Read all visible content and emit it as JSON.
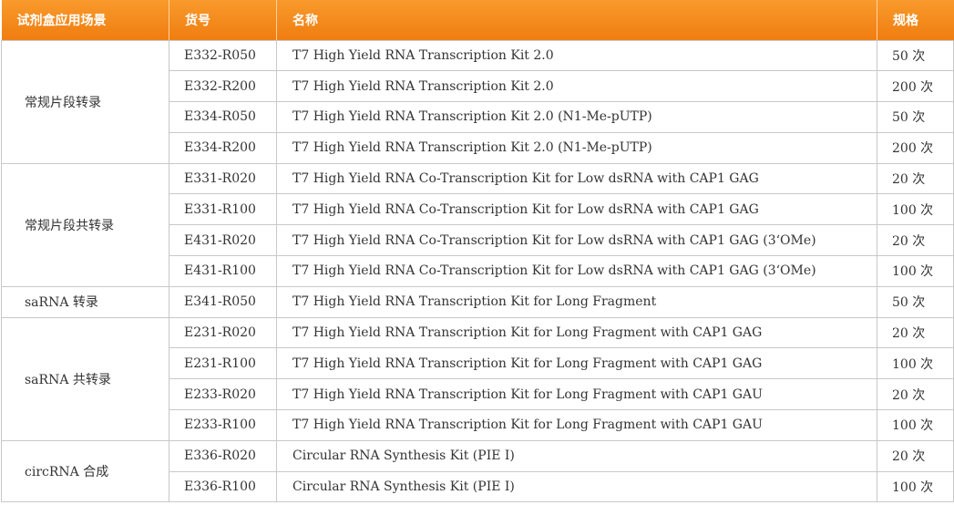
{
  "header": {
    "scene": "试剂盒应用场景",
    "catalog": "货号",
    "name": "名称",
    "spec": "规格"
  },
  "groups": [
    {
      "scene": "常规片段转录",
      "rows": [
        {
          "cat": "E332-R050",
          "name": "T7 High Yield RNA Transcription Kit 2.0",
          "spec": "50 次"
        },
        {
          "cat": "E332-R200",
          "name": "T7 High Yield RNA Transcription Kit 2.0",
          "spec": "200 次"
        },
        {
          "cat": "E334-R050",
          "name": "T7 High Yield RNA Transcription Kit 2.0 (N1-Me-pUTP)",
          "spec": "50 次"
        },
        {
          "cat": "E334-R200",
          "name": "T7 High Yield RNA Transcription Kit 2.0 (N1-Me-pUTP)",
          "spec": "200 次"
        }
      ]
    },
    {
      "scene": "常规片段共转录",
      "rows": [
        {
          "cat": "E331-R020",
          "name": "T7 High Yield RNA Co-Transcription Kit for Low dsRNA with CAP1 GAG",
          "spec": "20 次"
        },
        {
          "cat": "E331-R100",
          "name": "T7 High Yield RNA Co-Transcription Kit for Low dsRNA with CAP1 GAG",
          "spec": "100 次"
        },
        {
          "cat": "E431-R020",
          "name": "T7 High Yield RNA Co-Transcription Kit for Low dsRNA with CAP1 GAG (3‘OMe)",
          "spec": "20 次"
        },
        {
          "cat": "E431-R100",
          "name": "T7 High Yield RNA Co-Transcription Kit for Low dsRNA with CAP1 GAG (3‘OMe)",
          "spec": "100 次"
        }
      ]
    },
    {
      "scene": "saRNA 转录",
      "rows": [
        {
          "cat": "E341-R050",
          "name": "T7 High Yield RNA Transcription Kit for Long Fragment",
          "spec": "50 次"
        }
      ]
    },
    {
      "scene": "saRNA 共转录",
      "rows": [
        {
          "cat": "E231-R020",
          "name": "T7 High Yield RNA Transcription Kit for Long Fragment with CAP1 GAG",
          "spec": "20 次"
        },
        {
          "cat": "E231-R100",
          "name": "T7 High Yield RNA Transcription Kit for Long Fragment with CAP1 GAG",
          "spec": "100 次"
        },
        {
          "cat": "E233-R020",
          "name": "T7 High Yield RNA Transcription Kit for Long Fragment with CAP1 GAU",
          "spec": "20 次"
        },
        {
          "cat": "E233-R100",
          "name": "T7 High Yield RNA Transcription Kit for Long Fragment with CAP1 GAU",
          "spec": "100 次"
        }
      ]
    },
    {
      "scene": "circRNA 合成",
      "rows": [
        {
          "cat": "E336-R020",
          "name": "Circular RNA Synthesis Kit (PIE Ⅰ)",
          "spec": "20 次"
        },
        {
          "cat": "E336-R100",
          "name": "Circular RNA Synthesis Kit (PIE Ⅰ)",
          "spec": "100 次"
        }
      ]
    }
  ]
}
